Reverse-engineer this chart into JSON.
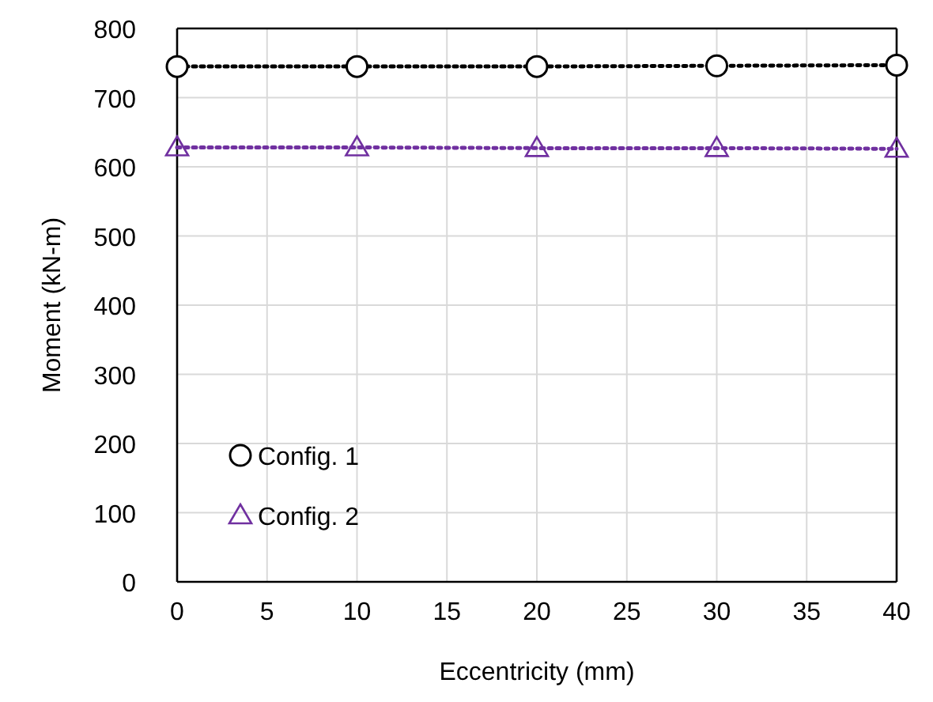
{
  "chart_data": {
    "type": "line",
    "xlabel": "Eccentricity (mm)",
    "ylabel": "Moment (kN-m)",
    "x": [
      0,
      10,
      20,
      30,
      40
    ],
    "series": [
      {
        "name": "Config. 1",
        "color": "#000000",
        "marker": "circle",
        "values": [
          745,
          745,
          745,
          746,
          747
        ]
      },
      {
        "name": "Config. 2",
        "color": "#7030a0",
        "marker": "triangle",
        "values": [
          628,
          628,
          627,
          627,
          626
        ]
      }
    ],
    "xlim": [
      0,
      40
    ],
    "xticks": [
      0,
      5,
      10,
      15,
      20,
      25,
      30,
      35,
      40
    ],
    "ylim": [
      0,
      800
    ],
    "yticks": [
      0,
      100,
      200,
      300,
      400,
      500,
      600,
      700,
      800
    ],
    "grid": true,
    "legend": "bottom left",
    "line_style": "dotted"
  }
}
